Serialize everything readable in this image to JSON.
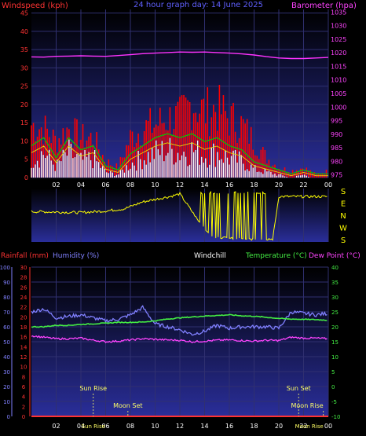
{
  "header": {
    "title": "24 hour graph day: 14 June 2025",
    "left_label": "Windspeed (kph)",
    "right_label": "Barometer (hpa)"
  },
  "colors": {
    "bg": "#000000",
    "plot_gradient_top": "#000000",
    "plot_gradient_bottom": "#2a2e9a",
    "wind_gust": "#ff0000",
    "wind_avg": "#ffffff",
    "wind_avg_line": "#e0e000",
    "wind_green": "#00cc00",
    "barometer": "#ff33ff",
    "direction": "#ffff00",
    "rainfall": "#ff3333",
    "humidity": "#8080ff",
    "temperature": "#44ee44",
    "dewpoint": "#ff44ff",
    "sun": "#ffff66",
    "axis_left_top": "#ff3333",
    "axis_right_top": "#ff44ff",
    "axis_left2": "#8080ff",
    "axis_right_bottom": "#44ee44"
  },
  "x_ticks": [
    "02",
    "04",
    "06",
    "08",
    "10",
    "12",
    "14",
    "16",
    "18",
    "20",
    "22",
    "00"
  ],
  "wind_y_ticks": [
    "0",
    "5",
    "10",
    "15",
    "20",
    "25",
    "30",
    "35",
    "40",
    "45"
  ],
  "baro_y_ticks": [
    "975",
    "980",
    "985",
    "990",
    "995",
    "1000",
    "1005",
    "1010",
    "1015",
    "1020",
    "1025",
    "1030",
    "1035"
  ],
  "dir_letters": [
    "S",
    "E",
    "N",
    "W",
    "S"
  ],
  "bottom_header": {
    "rain_label": "Rainfall (mm)",
    "hum_label": "Humidity (%)",
    "windchill_label": "Windchill",
    "temp_label": "Temperature (°C)",
    "dew_label": "Dew Point (°C)"
  },
  "humidity_ticks": [
    "0",
    "10",
    "20",
    "30",
    "40",
    "50",
    "60",
    "70",
    "80",
    "90",
    "100"
  ],
  "rain_ticks": [
    "0",
    "2",
    "4",
    "6",
    "8",
    "10",
    "12",
    "14",
    "16",
    "18",
    "20",
    "22",
    "24",
    "26",
    "28",
    "30"
  ],
  "temp_ticks": [
    "-10",
    "-5",
    "0",
    "5",
    "10",
    "15",
    "20",
    "25",
    "30",
    "35",
    "40"
  ],
  "events": {
    "sun_rise": "Sun Rise",
    "moon_set": "Moon Set",
    "sun_set": "Sun Set",
    "moon_rise": "Moon Rise",
    "sun_rise_time": 5.0,
    "moon_set_time": 7.8,
    "sun_set_time": 21.6,
    "moon_rise_time": 23.6
  },
  "chart_data": [
    {
      "type": "area",
      "title": "24 hour graph day: 14 June 2025",
      "ylabel": "Windspeed (kph)",
      "y2label": "Barometer (hpa)",
      "ylim": [
        0,
        46
      ],
      "y2lim": [
        974,
        1036
      ],
      "x": [
        0,
        1,
        2,
        3,
        4,
        5,
        6,
        7,
        8,
        9,
        10,
        11,
        12,
        13,
        14,
        15,
        16,
        17,
        18,
        19,
        20,
        21,
        22,
        23,
        24
      ],
      "series": [
        {
          "name": "Gust",
          "values": [
            16,
            15,
            11,
            15,
            12,
            12,
            5,
            3,
            12,
            15,
            16,
            18,
            18,
            23,
            20,
            21,
            18,
            16,
            11,
            6,
            3,
            2,
            3,
            1,
            2
          ]
        },
        {
          "name": "Average",
          "values": [
            7,
            9,
            4,
            9,
            6,
            7,
            2,
            1,
            5,
            7,
            9,
            10,
            9,
            10,
            8,
            9,
            7,
            6,
            3,
            2,
            1,
            0,
            1,
            0,
            0
          ]
        },
        {
          "name": "Barometer",
          "values": [
            1018.5,
            1018.4,
            1018.7,
            1018.8,
            1018.9,
            1018.8,
            1018.7,
            1019.0,
            1019.3,
            1019.7,
            1019.9,
            1020.1,
            1020.3,
            1020.2,
            1020.3,
            1020.1,
            1019.9,
            1019.6,
            1019.2,
            1018.6,
            1018.1,
            1017.9,
            1017.9,
            1018.1,
            1018.3
          ]
        }
      ]
    },
    {
      "type": "line",
      "ylabel": "Wind direction",
      "x": [
        0,
        2,
        4,
        6,
        7.5,
        9,
        10.5,
        11.2,
        12,
        13.2,
        14.5,
        17,
        19.5,
        20,
        24
      ],
      "series": [
        {
          "name": "Direction",
          "values": [
            0.57,
            0.56,
            0.55,
            0.58,
            0.62,
            0.75,
            0.82,
            0.85,
            0.9,
            0.5,
            0.1,
            0.05,
            0.05,
            0.85,
            0.85
          ]
        }
      ]
    },
    {
      "type": "line",
      "ylabel": "Humidity (%)",
      "y2label": "Temperature (°C)",
      "ylim": [
        0,
        100
      ],
      "y2lim": [
        -10,
        40
      ],
      "x": [
        0,
        1,
        2,
        3,
        4,
        5,
        6,
        7,
        8,
        9,
        10,
        11,
        12,
        13,
        14,
        15,
        16,
        17,
        18,
        19,
        20,
        21,
        22,
        23,
        24
      ],
      "series": [
        {
          "name": "Humidity",
          "values": [
            70,
            72,
            66,
            67,
            68,
            66,
            64,
            65,
            68,
            73,
            62,
            60,
            58,
            55,
            57,
            61,
            59,
            60,
            60,
            60,
            59,
            70,
            69,
            68,
            69
          ]
        },
        {
          "name": "Temperature",
          "values": [
            20,
            20,
            20.5,
            20.5,
            20.8,
            21,
            21.2,
            21.5,
            21.5,
            21.6,
            22,
            22.6,
            23,
            23.3,
            23.6,
            23.8,
            24,
            23.7,
            23.5,
            23.2,
            22.8,
            22.6,
            22.5,
            22.4,
            22.2
          ]
        },
        {
          "name": "Dew Point",
          "values": [
            17,
            16.5,
            16,
            16,
            16.2,
            15.5,
            15,
            15.2,
            15.6,
            16,
            15.8,
            15.6,
            15.5,
            15,
            15.2,
            15.5,
            15.6,
            15.4,
            15.2,
            15.5,
            15.4,
            16.5,
            16.2,
            16.2,
            16
          ]
        },
        {
          "name": "Rainfall",
          "values": [
            0,
            0,
            0,
            0,
            0,
            0,
            0,
            0,
            0,
            0,
            0,
            0,
            0,
            0,
            0,
            0,
            0,
            0,
            0,
            0,
            0,
            0,
            0,
            0,
            0
          ]
        }
      ]
    }
  ]
}
